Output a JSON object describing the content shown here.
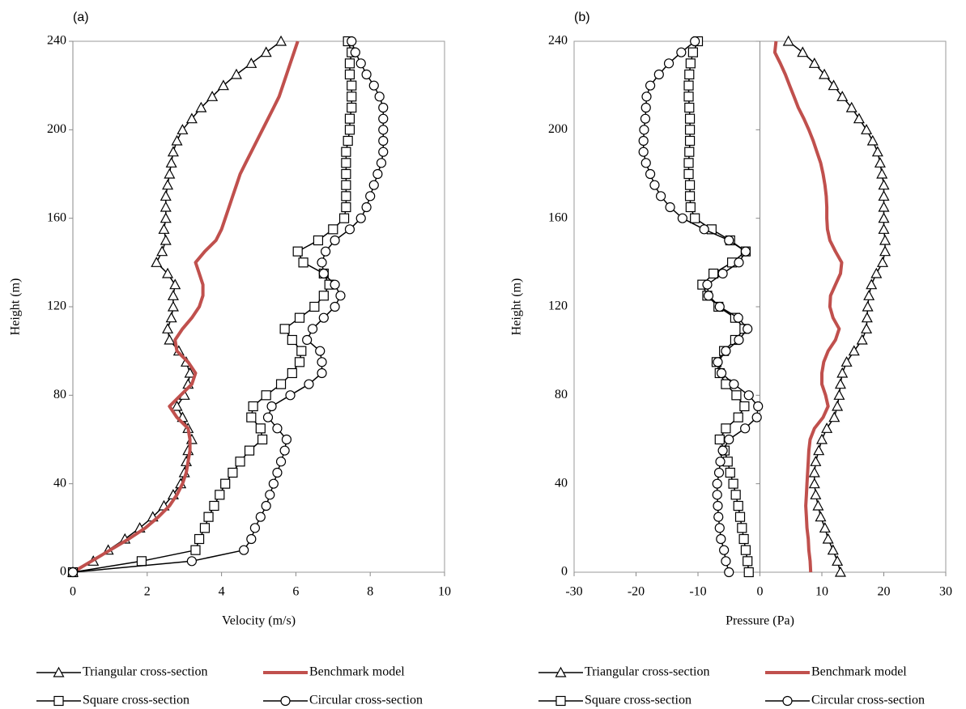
{
  "chart_data": [
    {
      "type": "line",
      "label": "(a)",
      "xlabel": "Velocity (m/s)",
      "ylabel": "Height (m)",
      "y": [
        0,
        5,
        10,
        15,
        20,
        25,
        30,
        35,
        40,
        45,
        50,
        55,
        60,
        65,
        70,
        75,
        80,
        85,
        90,
        95,
        100,
        105,
        110,
        115,
        120,
        125,
        130,
        135,
        140,
        145,
        150,
        155,
        160,
        165,
        170,
        175,
        180,
        185,
        190,
        195,
        200,
        205,
        210,
        215,
        220,
        225,
        230,
        235,
        240
      ],
      "xlim": [
        0,
        10
      ],
      "xticks": [
        0,
        2,
        4,
        6,
        8,
        10
      ],
      "ylim": [
        0,
        240
      ],
      "yticks": [
        0,
        40,
        80,
        120,
        160,
        200,
        240
      ],
      "legend": "bottom",
      "series": [
        {
          "name": "Triangular cross-section",
          "color": "#000000",
          "marker": "triangle",
          "values": [
            0,
            0.55,
            0.95,
            1.4,
            1.8,
            2.15,
            2.45,
            2.7,
            2.9,
            3.0,
            3.05,
            3.1,
            3.2,
            3.1,
            2.95,
            2.8,
            3.0,
            3.1,
            3.15,
            3.05,
            2.85,
            2.6,
            2.55,
            2.65,
            2.7,
            2.7,
            2.75,
            2.55,
            2.25,
            2.4,
            2.5,
            2.45,
            2.5,
            2.5,
            2.5,
            2.55,
            2.6,
            2.65,
            2.7,
            2.8,
            2.95,
            3.2,
            3.45,
            3.75,
            4.05,
            4.4,
            4.8,
            5.2,
            5.6
          ]
        },
        {
          "name": "Benchmark model",
          "color": "#c0504d",
          "marker": "none",
          "values": [
            0,
            0.5,
            1.0,
            1.5,
            1.95,
            2.3,
            2.6,
            2.8,
            2.95,
            3.05,
            3.1,
            3.15,
            3.15,
            3.1,
            2.8,
            2.6,
            2.9,
            3.2,
            3.3,
            3.1,
            2.8,
            2.75,
            2.95,
            3.2,
            3.4,
            3.5,
            3.5,
            3.4,
            3.3,
            3.55,
            3.85,
            4.0,
            4.1,
            4.2,
            4.3,
            4.4,
            4.5,
            4.65,
            4.8,
            4.95,
            5.1,
            5.25,
            5.4,
            5.55,
            5.65,
            5.75,
            5.85,
            5.95,
            6.05
          ]
        },
        {
          "name": "Square cross-section",
          "color": "#000000",
          "marker": "square",
          "values": [
            0,
            1.85,
            3.3,
            3.4,
            3.55,
            3.65,
            3.8,
            3.95,
            4.1,
            4.3,
            4.5,
            4.75,
            5.1,
            5.05,
            4.8,
            4.85,
            5.2,
            5.6,
            5.9,
            6.1,
            6.15,
            5.9,
            5.7,
            6.1,
            6.5,
            6.75,
            6.9,
            6.75,
            6.2,
            6.05,
            6.6,
            7.0,
            7.3,
            7.35,
            7.35,
            7.35,
            7.35,
            7.35,
            7.35,
            7.4,
            7.45,
            7.45,
            7.5,
            7.5,
            7.5,
            7.45,
            7.45,
            7.5,
            7.4
          ]
        },
        {
          "name": "Circular cross-section",
          "color": "#000000",
          "marker": "circle",
          "values": [
            0,
            3.2,
            4.6,
            4.8,
            4.9,
            5.05,
            5.2,
            5.3,
            5.4,
            5.5,
            5.6,
            5.7,
            5.75,
            5.5,
            5.25,
            5.35,
            5.85,
            6.35,
            6.7,
            6.7,
            6.65,
            6.3,
            6.45,
            6.75,
            7.05,
            7.2,
            7.05,
            6.75,
            6.7,
            6.8,
            7.05,
            7.45,
            7.75,
            7.9,
            8.0,
            8.1,
            8.2,
            8.3,
            8.35,
            8.35,
            8.35,
            8.35,
            8.35,
            8.25,
            8.1,
            7.9,
            7.75,
            7.6,
            7.5
          ]
        }
      ]
    },
    {
      "type": "line",
      "label": "(b)",
      "xlabel": "Pressure (Pa)",
      "ylabel": "Height (m)",
      "y": [
        0,
        5,
        10,
        15,
        20,
        25,
        30,
        35,
        40,
        45,
        50,
        55,
        60,
        65,
        70,
        75,
        80,
        85,
        90,
        95,
        100,
        105,
        110,
        115,
        120,
        125,
        130,
        135,
        140,
        145,
        150,
        155,
        160,
        165,
        170,
        175,
        180,
        185,
        190,
        195,
        200,
        205,
        210,
        215,
        220,
        225,
        230,
        235,
        240
      ],
      "xlim": [
        -30,
        30
      ],
      "xticks": [
        -30,
        -20,
        -10,
        0,
        10,
        20,
        30
      ],
      "ylim": [
        0,
        240
      ],
      "yticks": [
        0,
        40,
        80,
        120,
        160,
        200,
        240
      ],
      "legend": "bottom",
      "series": [
        {
          "name": "Triangular cross-section",
          "color": "#000000",
          "marker": "triangle",
          "values": [
            13,
            12.5,
            11.8,
            11.0,
            10.5,
            9.8,
            9.4,
            9.0,
            8.8,
            8.8,
            9.0,
            9.5,
            10.0,
            10.8,
            12.0,
            12.5,
            12.8,
            13.0,
            13.3,
            14.0,
            15.2,
            16.5,
            17.2,
            17.3,
            17.4,
            17.6,
            18.0,
            18.8,
            19.8,
            20.2,
            20.2,
            20.0,
            20.0,
            20.0,
            20.0,
            20.0,
            19.7,
            19.4,
            19.0,
            18.2,
            17.2,
            16.0,
            14.8,
            13.3,
            11.9,
            10.4,
            8.8,
            6.9,
            4.6
          ]
        },
        {
          "name": "Benchmark model",
          "color": "#c0504d",
          "marker": "none",
          "values": [
            8.2,
            8.1,
            7.9,
            7.8,
            7.6,
            7.5,
            7.4,
            7.5,
            7.6,
            7.7,
            7.8,
            7.9,
            8.1,
            8.8,
            10.2,
            11.0,
            10.6,
            10.0,
            10.0,
            10.3,
            11.0,
            12.2,
            12.8,
            11.8,
            11.3,
            11.4,
            12.2,
            13.0,
            13.2,
            12.2,
            11.3,
            10.9,
            10.8,
            10.8,
            10.7,
            10.5,
            10.2,
            9.8,
            9.2,
            8.6,
            7.9,
            7.1,
            6.2,
            5.5,
            4.8,
            4.1,
            3.3,
            2.4,
            2.6
          ]
        },
        {
          "name": "Square cross-section",
          "color": "#000000",
          "marker": "square",
          "values": [
            -1.8,
            -2.0,
            -2.3,
            -2.6,
            -2.9,
            -3.2,
            -3.5,
            -3.9,
            -4.3,
            -4.8,
            -5.2,
            -5.7,
            -6.5,
            -5.5,
            -3.5,
            -2.5,
            -3.8,
            -5.5,
            -6.5,
            -7.0,
            -5.8,
            -4.0,
            -2.5,
            -4.0,
            -6.7,
            -8.5,
            -9.3,
            -7.5,
            -4.5,
            -2.3,
            -4.8,
            -7.8,
            -10.5,
            -11.2,
            -11.3,
            -11.3,
            -11.5,
            -11.5,
            -11.4,
            -11.3,
            -11.3,
            -11.3,
            -11.4,
            -11.5,
            -11.5,
            -11.4,
            -11.2,
            -10.8,
            -10.0
          ]
        },
        {
          "name": "Circular cross-section",
          "color": "#000000",
          "marker": "circle",
          "values": [
            -5,
            -5.5,
            -5.8,
            -6.3,
            -6.5,
            -6.7,
            -6.8,
            -6.9,
            -6.9,
            -6.6,
            -6.4,
            -6.0,
            -5.0,
            -2.4,
            -0.5,
            -0.3,
            -1.8,
            -4.2,
            -6.2,
            -6.8,
            -5.5,
            -3.4,
            -2.0,
            -3.5,
            -6.5,
            -8.3,
            -8.5,
            -6.0,
            -3.4,
            -2.3,
            -5.0,
            -9.0,
            -12.5,
            -14.5,
            -16.0,
            -17.0,
            -17.7,
            -18.4,
            -18.8,
            -18.8,
            -18.7,
            -18.5,
            -18.4,
            -18.3,
            -17.7,
            -16.3,
            -14.7,
            -12.7,
            -10.5
          ]
        }
      ]
    }
  ]
}
